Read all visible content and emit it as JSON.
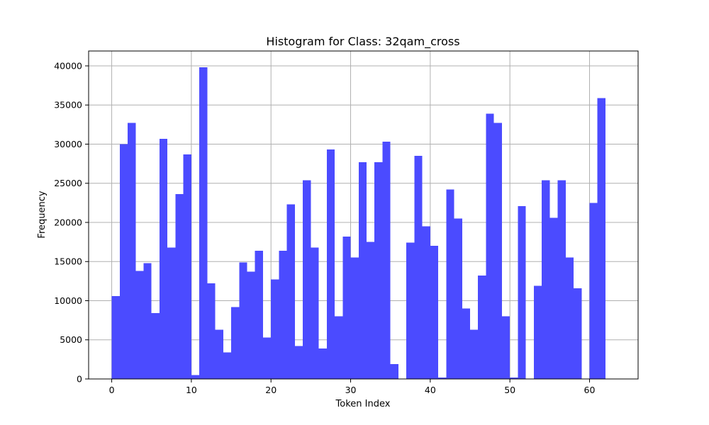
{
  "chart_data": {
    "type": "bar",
    "title": "Histogram for Class: 32qam_cross",
    "xlabel": "Token Index",
    "ylabel": "Frequency",
    "xlim": [
      -2.9,
      66.1
    ],
    "ylim": [
      0,
      41900
    ],
    "xticks": [
      0,
      10,
      20,
      30,
      40,
      50,
      60
    ],
    "yticks": [
      0,
      5000,
      10000,
      15000,
      20000,
      25000,
      30000,
      35000,
      40000
    ],
    "grid": true,
    "bar_color": "#4b4bff",
    "bin_start": 0,
    "bin_width": 1,
    "values": [
      10600,
      30000,
      32700,
      13800,
      14800,
      8400,
      30700,
      16800,
      23600,
      28700,
      500,
      39800,
      12200,
      6300,
      3400,
      9200,
      14900,
      13700,
      16400,
      5300,
      12700,
      16400,
      22300,
      4200,
      25400,
      16800,
      3900,
      29300,
      8000,
      18200,
      15500,
      27700,
      17500,
      27700,
      30300,
      1900,
      0,
      17400,
      28500,
      19500,
      17000,
      200,
      24200,
      20500,
      9000,
      6300,
      13200,
      33900,
      32700,
      8000,
      200,
      22100,
      0,
      11900,
      25400,
      20600,
      25400,
      15500,
      11600,
      0,
      22500,
      35900
    ]
  }
}
